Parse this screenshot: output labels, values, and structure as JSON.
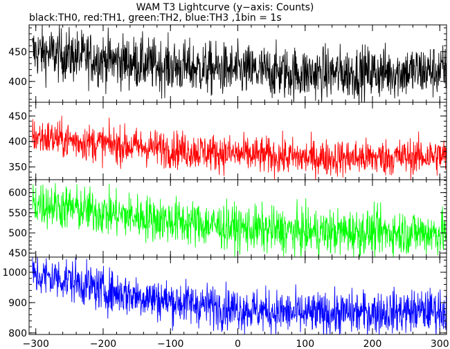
{
  "chart_data": {
    "type": "line",
    "title": "WAM T3 Lightcurve (y−axis: Counts)",
    "subtitle": "black:TH0, red:TH1, green:TH2, blue:TH3 ,1bin = 1s",
    "xlabel": "",
    "ylabel": "",
    "x_range": [
      -310,
      310
    ],
    "x_ticks": [
      -300,
      -200,
      -100,
      0,
      100,
      200,
      300
    ],
    "x_tick_labels": [
      "−300",
      "−200",
      "−100",
      "0",
      "100",
      "200",
      "300"
    ],
    "grid": false,
    "bin_seconds": 1,
    "panels": [
      {
        "series": "TH0",
        "color": "#000000",
        "ylim": [
          365,
          495
        ],
        "y_ticks": [
          400,
          450
        ],
        "trend": [
          [
            -305,
            450
          ],
          [
            -200,
            437
          ],
          [
            -100,
            425
          ],
          [
            0,
            418
          ],
          [
            100,
            413
          ],
          [
            200,
            415
          ],
          [
            310,
            418
          ]
        ],
        "noise_amplitude": 22
      },
      {
        "series": "TH1",
        "color": "#ff0000",
        "ylim": [
          325,
          477
        ],
        "y_ticks": [
          350,
          400,
          450
        ],
        "trend": [
          [
            -305,
            410
          ],
          [
            -200,
            395
          ],
          [
            -100,
            385
          ],
          [
            0,
            375
          ],
          [
            100,
            368
          ],
          [
            200,
            368
          ],
          [
            310,
            372
          ]
        ],
        "noise_amplitude": 18
      },
      {
        "series": "TH2",
        "color": "#00ff00",
        "ylim": [
          440,
          632
        ],
        "y_ticks": [
          450,
          500,
          550,
          600
        ],
        "trend": [
          [
            -305,
            575
          ],
          [
            -200,
            550
          ],
          [
            -100,
            530
          ],
          [
            0,
            512
          ],
          [
            100,
            502
          ],
          [
            200,
            502
          ],
          [
            310,
            500
          ]
        ],
        "noise_amplitude": 28
      },
      {
        "series": "TH3",
        "color": "#0000ff",
        "ylim": [
          795,
          1050
        ],
        "y_ticks": [
          800,
          900,
          1000
        ],
        "trend": [
          [
            -305,
            990
          ],
          [
            -250,
            975
          ],
          [
            -200,
            940
          ],
          [
            -100,
            905
          ],
          [
            0,
            880
          ],
          [
            100,
            862
          ],
          [
            200,
            868
          ],
          [
            310,
            875
          ]
        ],
        "noise_amplitude": 35
      }
    ]
  }
}
